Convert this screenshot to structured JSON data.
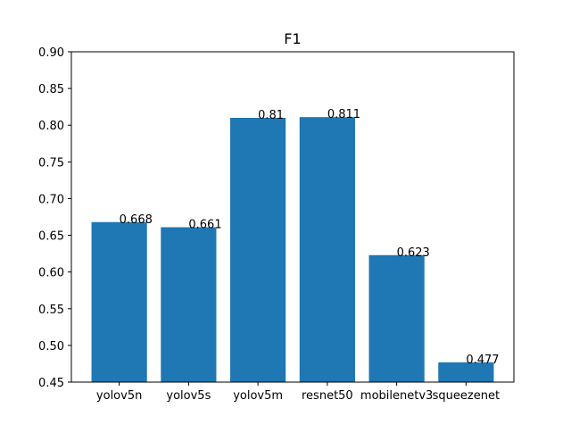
{
  "chart_data": {
    "type": "bar",
    "title": "F1",
    "xlabel": "",
    "ylabel": "",
    "categories": [
      "yolov5n",
      "yolov5s",
      "yolov5m",
      "resnet50",
      "mobilenetv3",
      "squeezenet"
    ],
    "values": [
      0.668,
      0.661,
      0.81,
      0.811,
      0.623,
      0.477
    ],
    "value_labels": [
      "0.668",
      "0.661",
      "0.81",
      "0.811",
      "0.623",
      "0.477"
    ],
    "ylim": [
      0.45,
      0.9
    ],
    "yticks": [
      "0.45",
      "0.50",
      "0.55",
      "0.60",
      "0.65",
      "0.70",
      "0.75",
      "0.80",
      "0.85",
      "0.90"
    ],
    "grid": false,
    "bar_color": "#1f77b4"
  }
}
